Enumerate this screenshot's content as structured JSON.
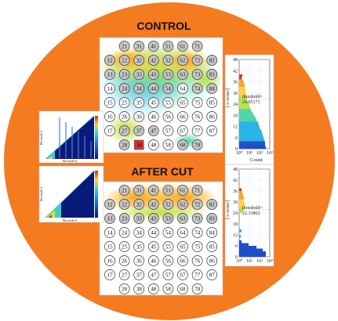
{
  "colors": {
    "circle_background": "#f47b20",
    "panel_background": "#ffffff",
    "grid_line": "#999999",
    "active_electrode_fill": "#c8c8c8",
    "inactive_electrode_fill": "#ffffff",
    "heatmap_hot": "#f5a623",
    "heatmap_warm": "#ffd24d",
    "heatmap_mid": "#b7e34a",
    "heatmap_cool": "#4fd6a8",
    "heatmap_cold": "#2ab3e6",
    "matrix_dark": "#0a1a7a",
    "matrix_light": "#ffffff"
  },
  "control": {
    "title": "CONTROL",
    "electrode_grid": {
      "rows": [
        [
          "",
          "21",
          "31",
          "41",
          "51",
          "61",
          "71",
          ""
        ],
        [
          "12",
          "22",
          "32",
          "42",
          "52",
          "62",
          "72",
          "82"
        ],
        [
          "13",
          "23",
          "33",
          "43",
          "53",
          "63",
          "73",
          "83"
        ],
        [
          "14",
          "24",
          "34",
          "44",
          "54",
          "64",
          "74",
          "84"
        ],
        [
          "15",
          "25",
          "35",
          "45",
          "55",
          "65",
          "75",
          "85"
        ],
        [
          "16",
          "26",
          "36",
          "46",
          "56",
          "66",
          "76",
          "86"
        ],
        [
          "17",
          "27",
          "37",
          "47",
          "57",
          "67",
          "77",
          "87"
        ],
        [
          "",
          "28",
          "38",
          "48",
          "58",
          "68",
          "78",
          ""
        ]
      ],
      "active": [
        "21",
        "31",
        "41",
        "51",
        "61",
        "71",
        "12",
        "22",
        "32",
        "42",
        "52",
        "62",
        "72",
        "82",
        "13",
        "23",
        "33",
        "43",
        "53",
        "63",
        "73",
        "83",
        "24",
        "34",
        "44",
        "54",
        "74",
        "84",
        "27",
        "37",
        "47",
        "28",
        "68",
        "78"
      ],
      "special": [
        "38"
      ]
    },
    "histogram": {
      "y_axis_label": "[-r score]",
      "x_axis_label": "Count",
      "y_ticks": [
        "0",
        "6",
        "12",
        "18",
        "24",
        "30",
        "36",
        "42",
        "48"
      ],
      "x_ticks": [
        "10⁰",
        "10¹",
        "10²",
        "10³"
      ],
      "threshold_label": "threshold=",
      "threshold_value": "24.95171"
    }
  },
  "after_cut": {
    "title": "AFTER CUT",
    "electrode_grid": {
      "rows": [
        [
          "",
          "21",
          "31",
          "41",
          "51",
          "61",
          "71",
          ""
        ],
        [
          "12",
          "22",
          "32",
          "42",
          "52",
          "62",
          "72",
          "82"
        ],
        [
          "13",
          "23",
          "33",
          "43",
          "53",
          "63",
          "73",
          "83"
        ],
        [
          "14",
          "24",
          "34",
          "44",
          "54",
          "64",
          "74",
          "84"
        ],
        [
          "15",
          "25",
          "35",
          "45",
          "55",
          "65",
          "75",
          "85"
        ],
        [
          "16",
          "26",
          "36",
          "46",
          "56",
          "66",
          "76",
          "86"
        ],
        [
          "17",
          "27",
          "37",
          "47",
          "57",
          "67",
          "77",
          "87"
        ],
        [
          "",
          "28",
          "38",
          "48",
          "58",
          "68",
          "78",
          ""
        ]
      ],
      "active": [
        "21",
        "31",
        "41",
        "51",
        "61",
        "71",
        "12",
        "22",
        "32",
        "42",
        "52",
        "62",
        "72",
        "82",
        "13",
        "23",
        "33",
        "43",
        "53",
        "63",
        "73",
        "83"
      ],
      "special": []
    },
    "histogram": {
      "y_axis_label": "[-r score]",
      "x_axis_label": "",
      "y_ticks": [
        "0",
        "6",
        "12",
        "18",
        "24",
        "30",
        "36",
        "42",
        "48"
      ],
      "x_ticks": [
        "10⁰",
        "10¹",
        "10²",
        "10³"
      ],
      "threshold_label": "threshold=",
      "threshold_value": "22.13863"
    }
  },
  "matrices": {
    "top": {
      "x_label": "Electrode #",
      "y_label": "Electrode #"
    },
    "bottom": {
      "x_label": "Electrode #",
      "y_label": "Electrode #"
    }
  }
}
